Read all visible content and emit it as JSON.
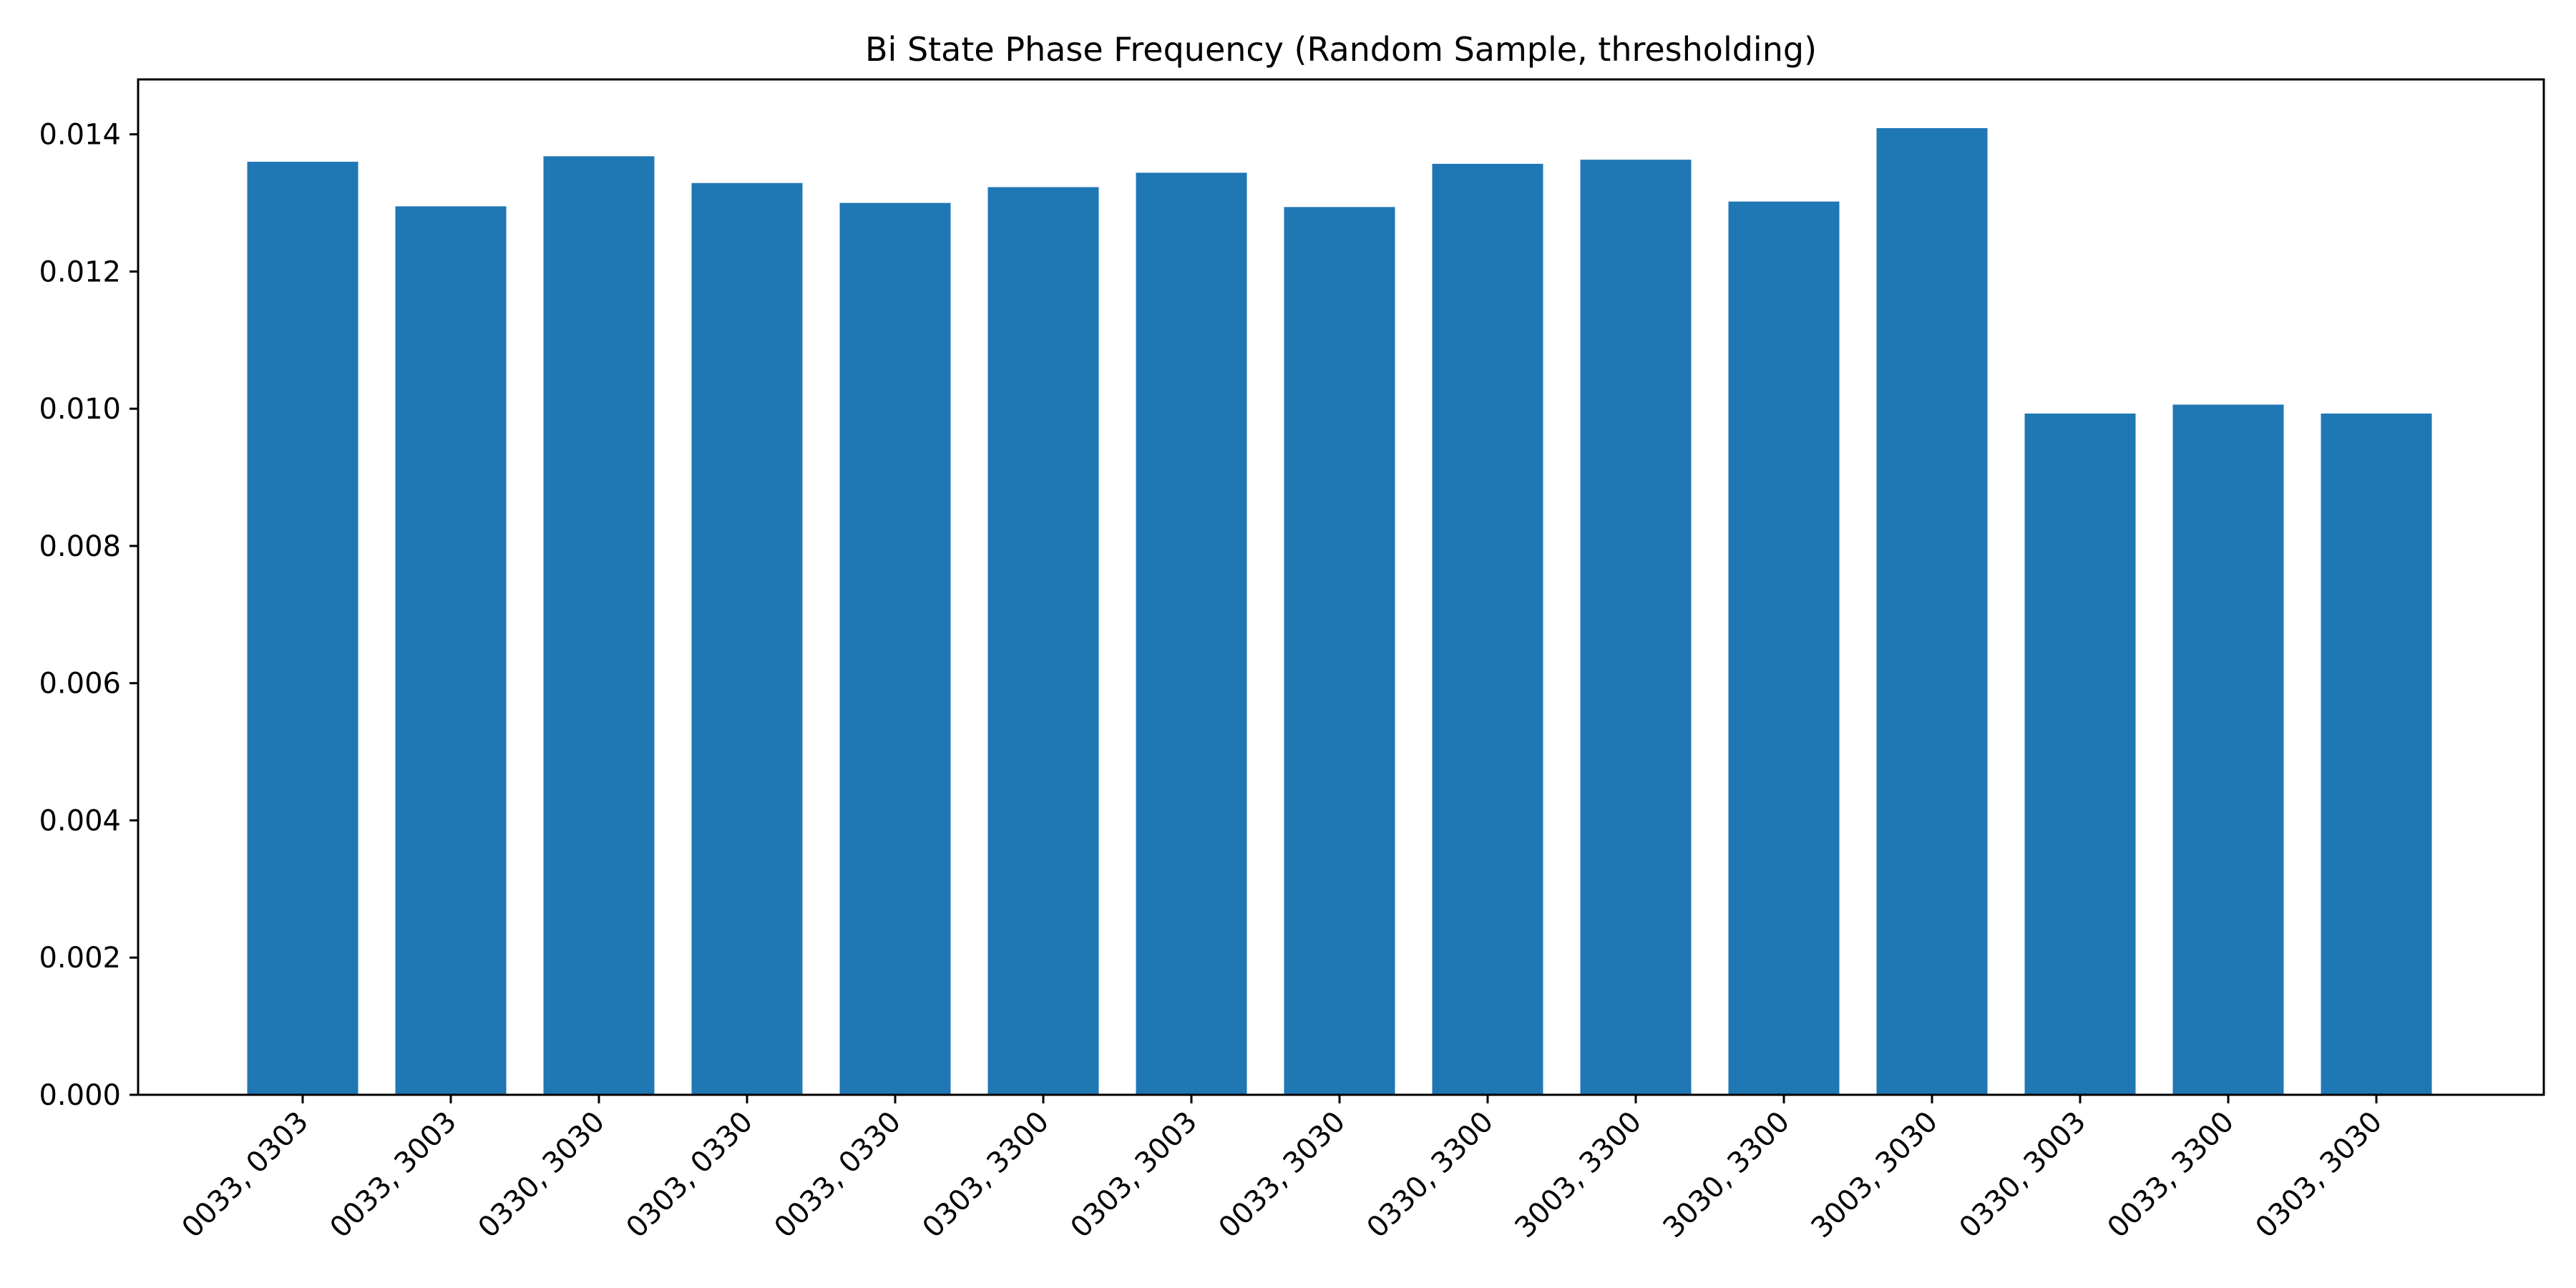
{
  "chart_data": {
    "type": "bar",
    "title": "Bi State Phase Frequency (Random Sample, thresholding)",
    "xlabel": "",
    "ylabel": "",
    "categories": [
      "0033, 0303",
      "0033, 3003",
      "0330, 3030",
      "0303, 0330",
      "0033, 0330",
      "0303, 3300",
      "0303, 3003",
      "0033, 3030",
      "0330, 3300",
      "3003, 3300",
      "3030, 3300",
      "3003, 3030",
      "0330, 3003",
      "0033, 3300",
      "0303, 3030"
    ],
    "values": [
      0.0136,
      0.01295,
      0.01368,
      0.01329,
      0.013,
      0.01323,
      0.01344,
      0.01294,
      0.01357,
      0.01363,
      0.01302,
      0.01409,
      0.00993,
      0.01006,
      0.00993
    ],
    "ylim": [
      0,
      0.0148
    ],
    "yticks": [
      0.0,
      0.002,
      0.004,
      0.006,
      0.008,
      0.01,
      0.012,
      0.014
    ],
    "ytick_labels": [
      "0.000",
      "0.002",
      "0.004",
      "0.006",
      "0.008",
      "0.010",
      "0.012",
      "0.014"
    ],
    "bar_color": "#1f77b4",
    "grid": false,
    "legend": "none"
  }
}
